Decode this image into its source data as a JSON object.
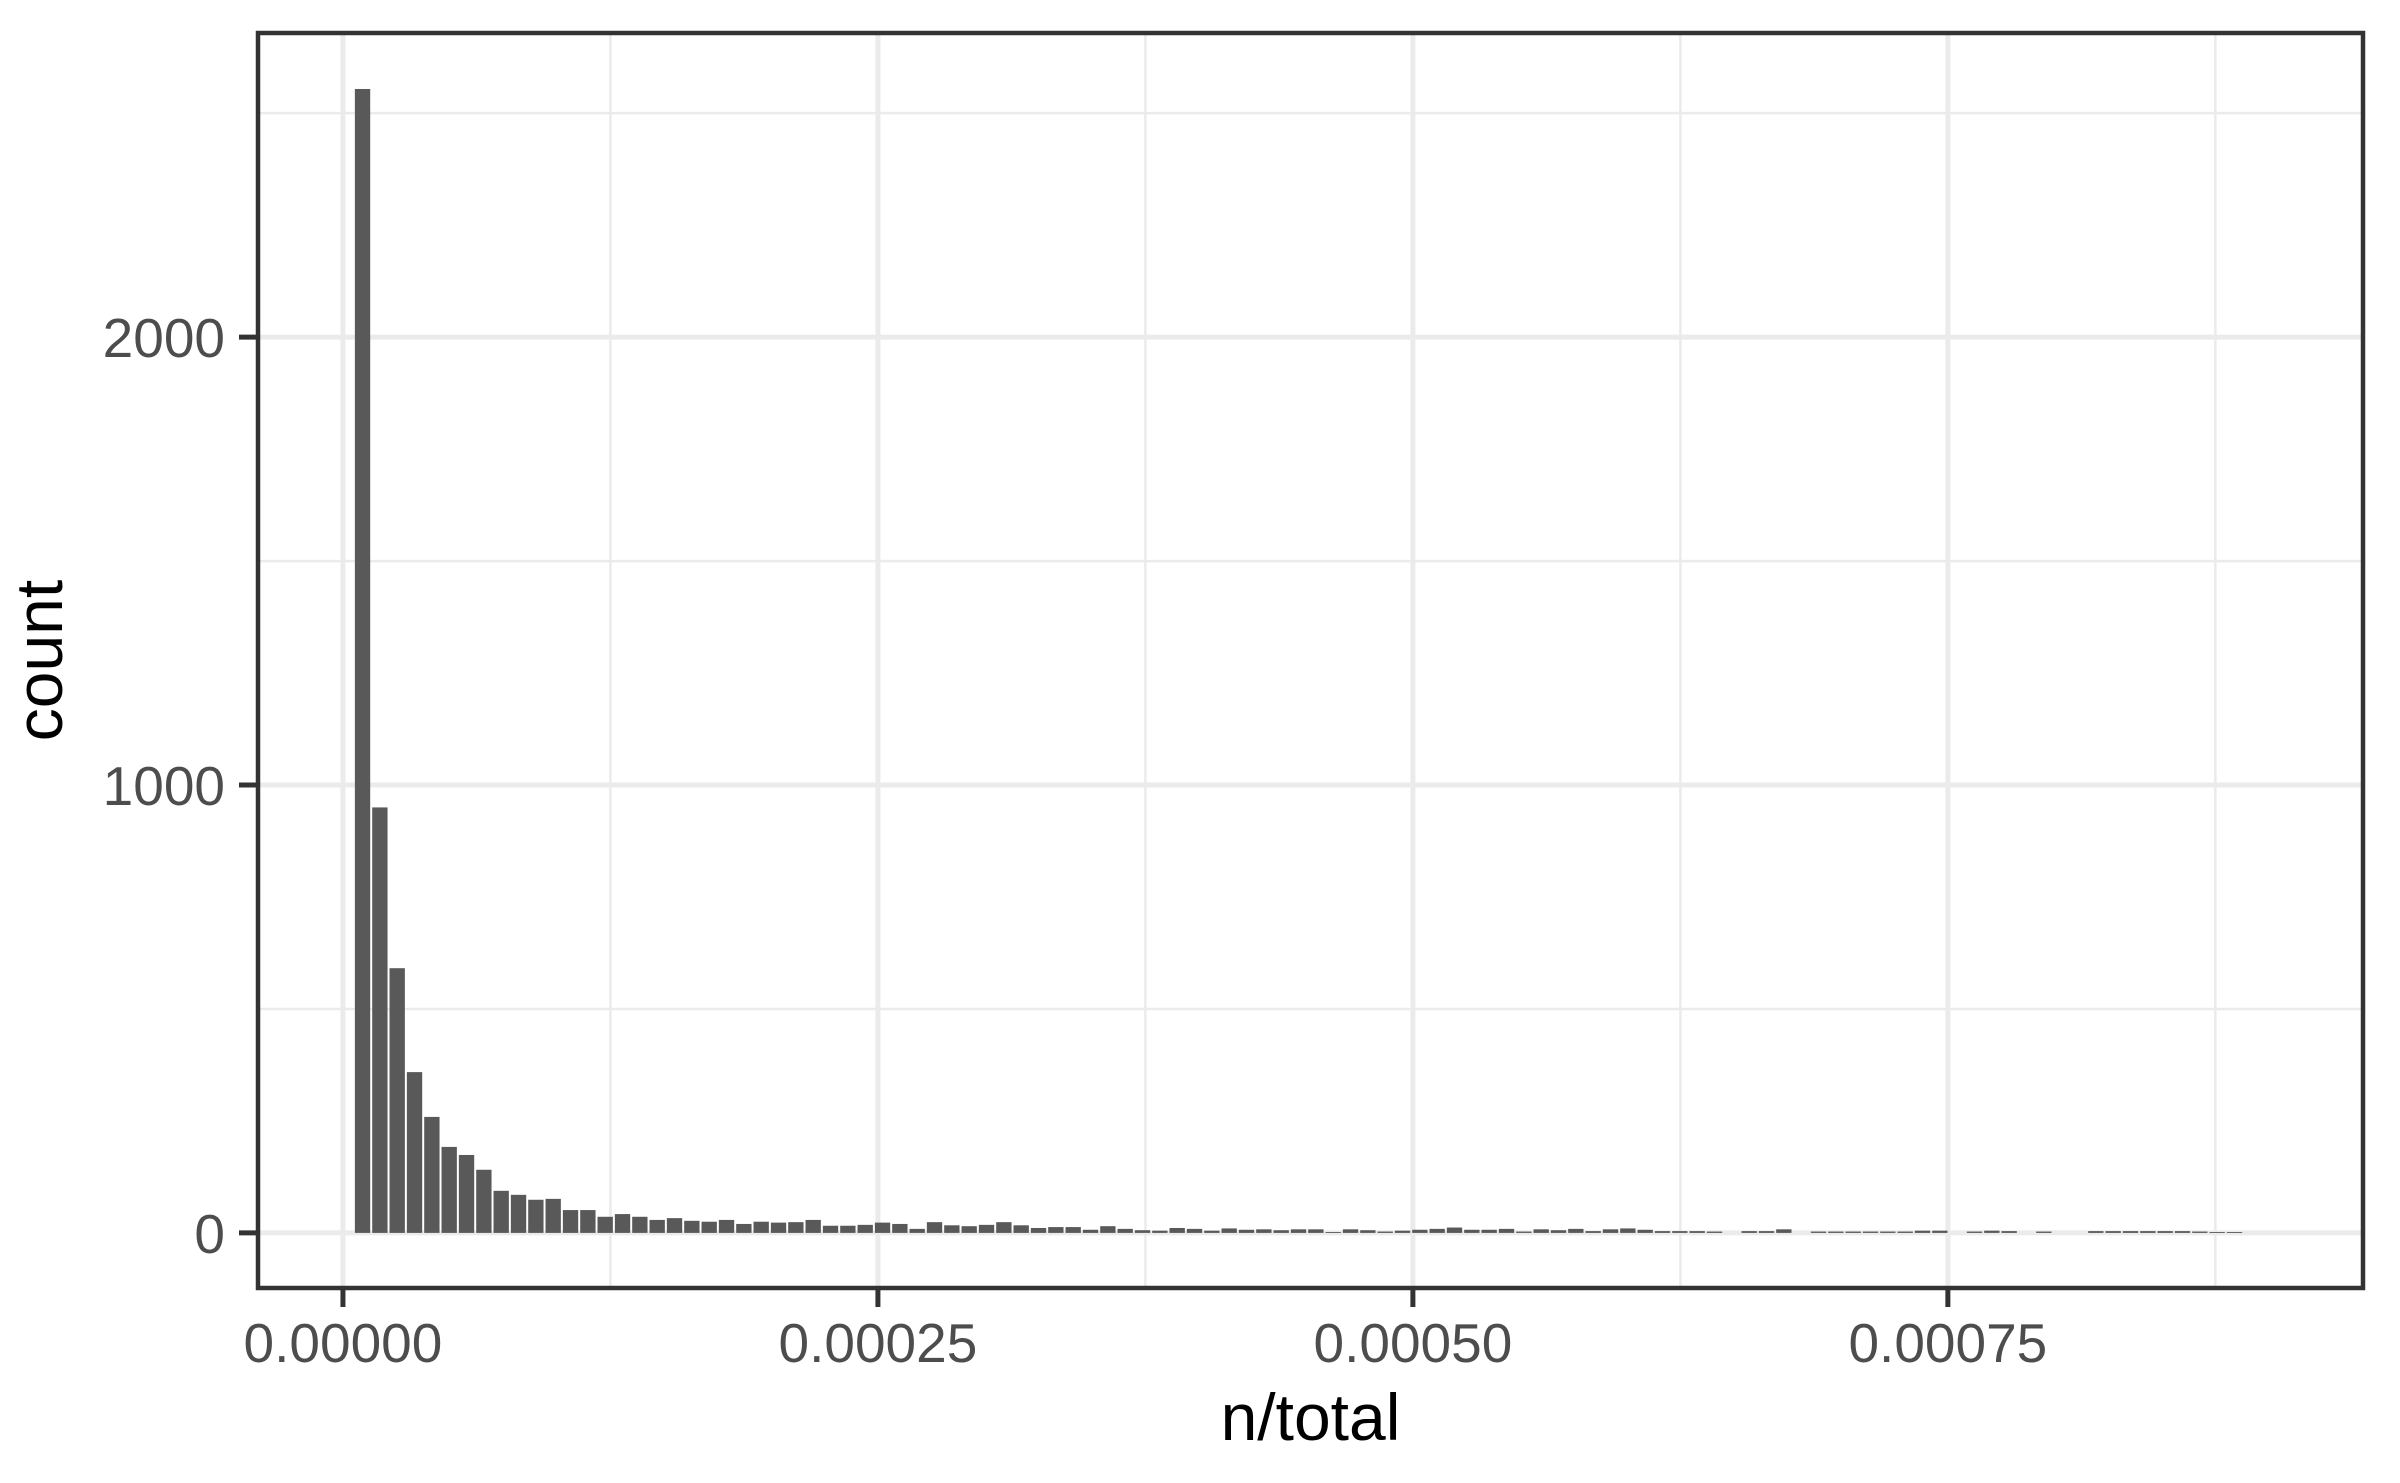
{
  "chart_data": {
    "type": "bar",
    "subtype": "histogram",
    "title": "",
    "xlabel": "n/total",
    "ylabel": "count",
    "legend": "none",
    "grid": true,
    "xlim": [
      -3.97e-05,
      0.000944
    ],
    "ylim": [
      -123,
      2679
    ],
    "x_ticks": [
      {
        "value": 0.0,
        "label": "0.00000"
      },
      {
        "value": 0.00025,
        "label": "0.00025"
      },
      {
        "value": 0.0005,
        "label": "0.00050"
      },
      {
        "value": 0.00075,
        "label": "0.00075"
      }
    ],
    "x_minor_ticks": [
      0.000125,
      0.000375,
      0.000625,
      0.000875
    ],
    "y_ticks": [
      {
        "value": 0,
        "label": "0"
      },
      {
        "value": 1000,
        "label": "1000"
      },
      {
        "value": 2000,
        "label": "2000"
      }
    ],
    "y_minor_ticks": [
      500,
      1500,
      2500
    ],
    "bin_start": 5.1e-06,
    "bin_width": 8.1e-06,
    "counts": [
      2554,
      950,
      591,
      359,
      259,
      192,
      174,
      141,
      94,
      85,
      74,
      76,
      51,
      51,
      36,
      42,
      36,
      29,
      33,
      27,
      25,
      29,
      20,
      25,
      23,
      24,
      29,
      16,
      16,
      18,
      23,
      20,
      9,
      24,
      17,
      15,
      18,
      24,
      17,
      11,
      13,
      13,
      7,
      15,
      9,
      6,
      5,
      11,
      9,
      5,
      10,
      7,
      8,
      6,
      8,
      8,
      2,
      8,
      6,
      3,
      5,
      7,
      9,
      12,
      7,
      7,
      9,
      3,
      8,
      6,
      9,
      4,
      8,
      10,
      7,
      4,
      4,
      4,
      3,
      0,
      4,
      4,
      8,
      0,
      3,
      3,
      3,
      3,
      3,
      3,
      5,
      5,
      0,
      3,
      5,
      4,
      0,
      3,
      0,
      0,
      4,
      4,
      4,
      4,
      4,
      4,
      3,
      2,
      2
    ],
    "colors": {
      "bar_fill": "#595959",
      "panel_border": "#333333",
      "grid_major": "#ebebeb",
      "grid_minor": "#ebebeb",
      "tick_mark": "#333333",
      "tick_label": "#4d4d4d",
      "axis_title": "#000000",
      "background": "#ffffff"
    }
  }
}
